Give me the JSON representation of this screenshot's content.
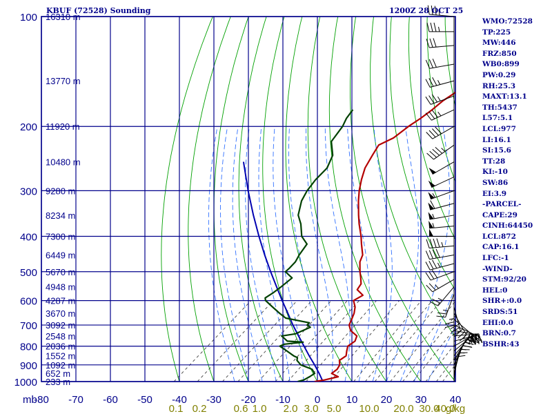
{
  "title_left": "KBUF (72528) Sounding",
  "title_right": "1200Z 28 OCT 25",
  "colors": {
    "grid": "#00008b",
    "dry_adiabat": "#00a000",
    "moist_adiabat": "#3070ff",
    "mixing_ratio": "#404040",
    "temperature": "#b40000",
    "dewpoint": "#004000",
    "parcel": "#0000b0",
    "wind_barb": "#000000",
    "mixing_ratio_label": "#808000",
    "label": "#00008b"
  },
  "panel": [
    "WMO:72528",
    "TP:225",
    "MW:446",
    "FRZ:850",
    "WB0:899",
    "PW:0.29",
    "RH:25.3",
    "MAXT:13.1",
    "TH:5437",
    "L57:5.1",
    "LCL:977",
    "LI:16.1",
    "SI:15.6",
    "TT:28",
    "KI:-10",
    "SW:86",
    "EI:3.9",
    "-PARCEL-",
    "CAPE:29",
    "CINH:64450",
    "LCL:872",
    "CAP:16.1",
    "LFC:-1",
    "-WIND-",
    "STM:92/20",
    "HEL:0",
    "SHR+:0.0",
    "SRDS:51",
    "EHI:0.0",
    "BRN:0.7",
    "BSHR:43"
  ],
  "chart_data": {
    "type": "skew-t log-p",
    "ylabel": "mb",
    "pressure_ticks": [
      "100",
      "200",
      "300",
      "400",
      "500",
      "600",
      "700",
      "800",
      "900",
      "1000"
    ],
    "pressure_values": [
      100,
      200,
      300,
      400,
      500,
      600,
      700,
      800,
      900,
      1000
    ],
    "temperature_ticks": [
      "-80",
      "-70",
      "-60",
      "-50",
      "-40",
      "-30",
      "-20",
      "-10",
      "0",
      "10",
      "20",
      "30",
      "40"
    ],
    "mixing_ratio_ticks": [
      "0.1",
      "0.2",
      "0.6",
      "1.0",
      "2.0",
      "3.0",
      "5.0",
      "10.0",
      "20.0",
      "30.0",
      "40.0",
      "g/kg"
    ],
    "height_labels": [
      {
        "p": 100,
        "text": "16310 m"
      },
      {
        "p": 150,
        "text": "13770 m"
      },
      {
        "p": 200,
        "text": "11920 m"
      },
      {
        "p": 250,
        "text": "10480 m"
      },
      {
        "p": 300,
        "text": "9280 m"
      },
      {
        "p": 350,
        "text": "8234 m"
      },
      {
        "p": 400,
        "text": "7300 m"
      },
      {
        "p": 450,
        "text": "6449 m"
      },
      {
        "p": 500,
        "text": "5670 m"
      },
      {
        "p": 550,
        "text": "4948 m"
      },
      {
        "p": 600,
        "text": "4287 m"
      },
      {
        "p": 650,
        "text": "3670 m"
      },
      {
        "p": 700,
        "text": "3092 m"
      },
      {
        "p": 750,
        "text": "2548 m"
      },
      {
        "p": 800,
        "text": "2036 m"
      },
      {
        "p": 850,
        "text": "1552 m"
      },
      {
        "p": 900,
        "text": "1092 m"
      },
      {
        "p": 950,
        "text": "652 m"
      },
      {
        "p": 1000,
        "text": "233 m"
      }
    ],
    "temperature": [
      [
        1000,
        -0.8
      ],
      [
        990,
        1.5
      ],
      [
        970,
        4.4
      ],
      [
        950,
        1.4
      ],
      [
        925,
        1.6
      ],
      [
        900,
        0.9
      ],
      [
        875,
        -0.7
      ],
      [
        850,
        -0.3
      ],
      [
        825,
        -1.7
      ],
      [
        800,
        -3.0
      ],
      [
        775,
        -2.6
      ],
      [
        750,
        -3.8
      ],
      [
        725,
        -7.4
      ],
      [
        700,
        -9.7
      ],
      [
        675,
        -10.9
      ],
      [
        650,
        -12.2
      ],
      [
        625,
        -14.0
      ],
      [
        600,
        -16.6
      ],
      [
        580,
        -15.7
      ],
      [
        560,
        -19.2
      ],
      [
        540,
        -20.0
      ],
      [
        520,
        -22.1
      ],
      [
        500,
        -24.4
      ],
      [
        470,
        -27.7
      ],
      [
        450,
        -29.2
      ],
      [
        420,
        -33.2
      ],
      [
        400,
        -35.9
      ],
      [
        370,
        -40.6
      ],
      [
        350,
        -43.7
      ],
      [
        320,
        -48.5
      ],
      [
        300,
        -51.7
      ],
      [
        280,
        -54.7
      ],
      [
        260,
        -57.6
      ],
      [
        240,
        -59.7
      ],
      [
        225,
        -61.3
      ],
      [
        215,
        -59.4
      ],
      [
        200,
        -58.9
      ],
      [
        190,
        -58.1
      ],
      [
        180,
        -57.6
      ],
      [
        170,
        -57.5
      ],
      [
        160,
        -56.5
      ],
      [
        150,
        -54.7
      ],
      [
        140,
        -55.4
      ],
      [
        130,
        -54.8
      ],
      [
        120,
        -55.0
      ],
      [
        110,
        -56.1
      ],
      [
        100,
        -56.6
      ]
    ],
    "dewpoint": [
      [
        1000,
        -5.7
      ],
      [
        990,
        -4.5
      ],
      [
        970,
        -3.9
      ],
      [
        950,
        -3.5
      ],
      [
        925,
        -5.7
      ],
      [
        900,
        -10.4
      ],
      [
        875,
        -13.0
      ],
      [
        860,
        -13.8
      ],
      [
        850,
        -15.5
      ],
      [
        825,
        -19.0
      ],
      [
        800,
        -22.7
      ],
      [
        790,
        -22.0
      ],
      [
        780,
        -17.3
      ],
      [
        775,
        -22.2
      ],
      [
        750,
        -25.6
      ],
      [
        740,
        -22.3
      ],
      [
        710,
        -20.2
      ],
      [
        700,
        -21.9
      ],
      [
        690,
        -22.0
      ],
      [
        670,
        -30.4
      ],
      [
        650,
        -33.8
      ],
      [
        625,
        -37.9
      ],
      [
        600,
        -42.1
      ],
      [
        590,
        -43.1
      ],
      [
        570,
        -42.5
      ],
      [
        550,
        -42.2
      ],
      [
        520,
        -42.0
      ],
      [
        500,
        -46.0
      ],
      [
        490,
        -46.0
      ],
      [
        470,
        -46.4
      ],
      [
        450,
        -47.6
      ],
      [
        420,
        -49.0
      ],
      [
        400,
        -53.1
      ],
      [
        370,
        -57.5
      ],
      [
        350,
        -61.2
      ],
      [
        320,
        -65.0
      ],
      [
        300,
        -66.8
      ],
      [
        280,
        -68.0
      ],
      [
        260,
        -68.6
      ],
      [
        240,
        -71.2
      ],
      [
        220,
        -76.2
      ],
      [
        200,
        -78.0
      ],
      [
        190,
        -79.6
      ],
      [
        180,
        -80.6
      ]
    ],
    "parcel": [
      [
        1000,
        1.6
      ],
      [
        950,
        -2.2
      ],
      [
        900,
        -6.4
      ],
      [
        850,
        -11.0
      ],
      [
        800,
        -15.7
      ],
      [
        750,
        -20.7
      ],
      [
        700,
        -26.0
      ],
      [
        650,
        -31.4
      ],
      [
        600,
        -37.3
      ],
      [
        550,
        -43.5
      ],
      [
        500,
        -50.3
      ],
      [
        450,
        -57.6
      ],
      [
        400,
        -65.5
      ],
      [
        350,
        -74.2
      ],
      [
        300,
        -83.9
      ],
      [
        250,
        -94.9
      ]
    ],
    "wind_barbs": [
      {
        "p": 1000,
        "dir": 5,
        "spd": 10
      },
      {
        "p": 975,
        "dir": 10,
        "spd": 10
      },
      {
        "p": 950,
        "dir": 15,
        "spd": 15
      },
      {
        "p": 925,
        "dir": 20,
        "spd": 15
      },
      {
        "p": 900,
        "dir": 25,
        "spd": 20
      },
      {
        "p": 875,
        "dir": 30,
        "spd": 20
      },
      {
        "p": 850,
        "dir": 40,
        "spd": 25
      },
      {
        "p": 825,
        "dir": 50,
        "spd": 25
      },
      {
        "p": 800,
        "dir": 60,
        "spd": 30
      },
      {
        "p": 775,
        "dir": 75,
        "spd": 30
      },
      {
        "p": 750,
        "dir": 85,
        "spd": 30
      },
      {
        "p": 725,
        "dir": 100,
        "spd": 25
      },
      {
        "p": 700,
        "dir": 115,
        "spd": 25
      },
      {
        "p": 675,
        "dir": 130,
        "spd": 30
      },
      {
        "p": 650,
        "dir": 150,
        "spd": 30
      },
      {
        "p": 625,
        "dir": 165,
        "spd": 30
      },
      {
        "p": 600,
        "dir": 180,
        "spd": 25
      },
      {
        "p": 575,
        "dir": 200,
        "spd": 25
      },
      {
        "p": 550,
        "dir": 220,
        "spd": 25
      },
      {
        "p": 525,
        "dir": 240,
        "spd": 25
      },
      {
        "p": 500,
        "dir": 250,
        "spd": 30
      },
      {
        "p": 475,
        "dir": 255,
        "spd": 35
      },
      {
        "p": 450,
        "dir": 260,
        "spd": 40
      },
      {
        "p": 425,
        "dir": 265,
        "spd": 45
      },
      {
        "p": 400,
        "dir": 270,
        "spd": 50
      },
      {
        "p": 375,
        "dir": 265,
        "spd": 55
      },
      {
        "p": 350,
        "dir": 260,
        "spd": 55
      },
      {
        "p": 325,
        "dir": 255,
        "spd": 60
      },
      {
        "p": 300,
        "dir": 250,
        "spd": 55
      },
      {
        "p": 275,
        "dir": 245,
        "spd": 50
      },
      {
        "p": 250,
        "dir": 240,
        "spd": 50
      },
      {
        "p": 225,
        "dir": 235,
        "spd": 45
      },
      {
        "p": 200,
        "dir": 240,
        "spd": 40
      },
      {
        "p": 180,
        "dir": 245,
        "spd": 35
      },
      {
        "p": 165,
        "dir": 250,
        "spd": 35
      },
      {
        "p": 150,
        "dir": 255,
        "spd": 35
      },
      {
        "p": 135,
        "dir": 260,
        "spd": 30
      },
      {
        "p": 120,
        "dir": 265,
        "spd": 30
      },
      {
        "p": 110,
        "dir": 270,
        "spd": 35
      },
      {
        "p": 100,
        "dir": 275,
        "spd": 35
      }
    ],
    "dry_adiabat_thetas": [
      -40,
      -30,
      -20,
      -10,
      0,
      10,
      20,
      30,
      40,
      50,
      60,
      70,
      80,
      90,
      100,
      110,
      120,
      130,
      140,
      150,
      160,
      170,
      180,
      190,
      200,
      210,
      220,
      230,
      240,
      250,
      260
    ],
    "moist_adiabat_thetaw": [
      -24,
      -20,
      -16,
      -12,
      -8,
      -4,
      0,
      4,
      8,
      12,
      16,
      20,
      24,
      28,
      32
    ],
    "mixing_ratios": [
      0.1,
      0.2,
      0.4,
      0.6,
      1.0,
      1.5,
      2.0,
      3.0,
      5.0,
      8.0,
      10.0,
      12.0,
      16.0,
      20.0,
      24.0,
      30.0,
      36.0,
      40.0
    ],
    "xlim": [
      -80,
      40
    ],
    "ylim": [
      1000,
      100
    ]
  }
}
